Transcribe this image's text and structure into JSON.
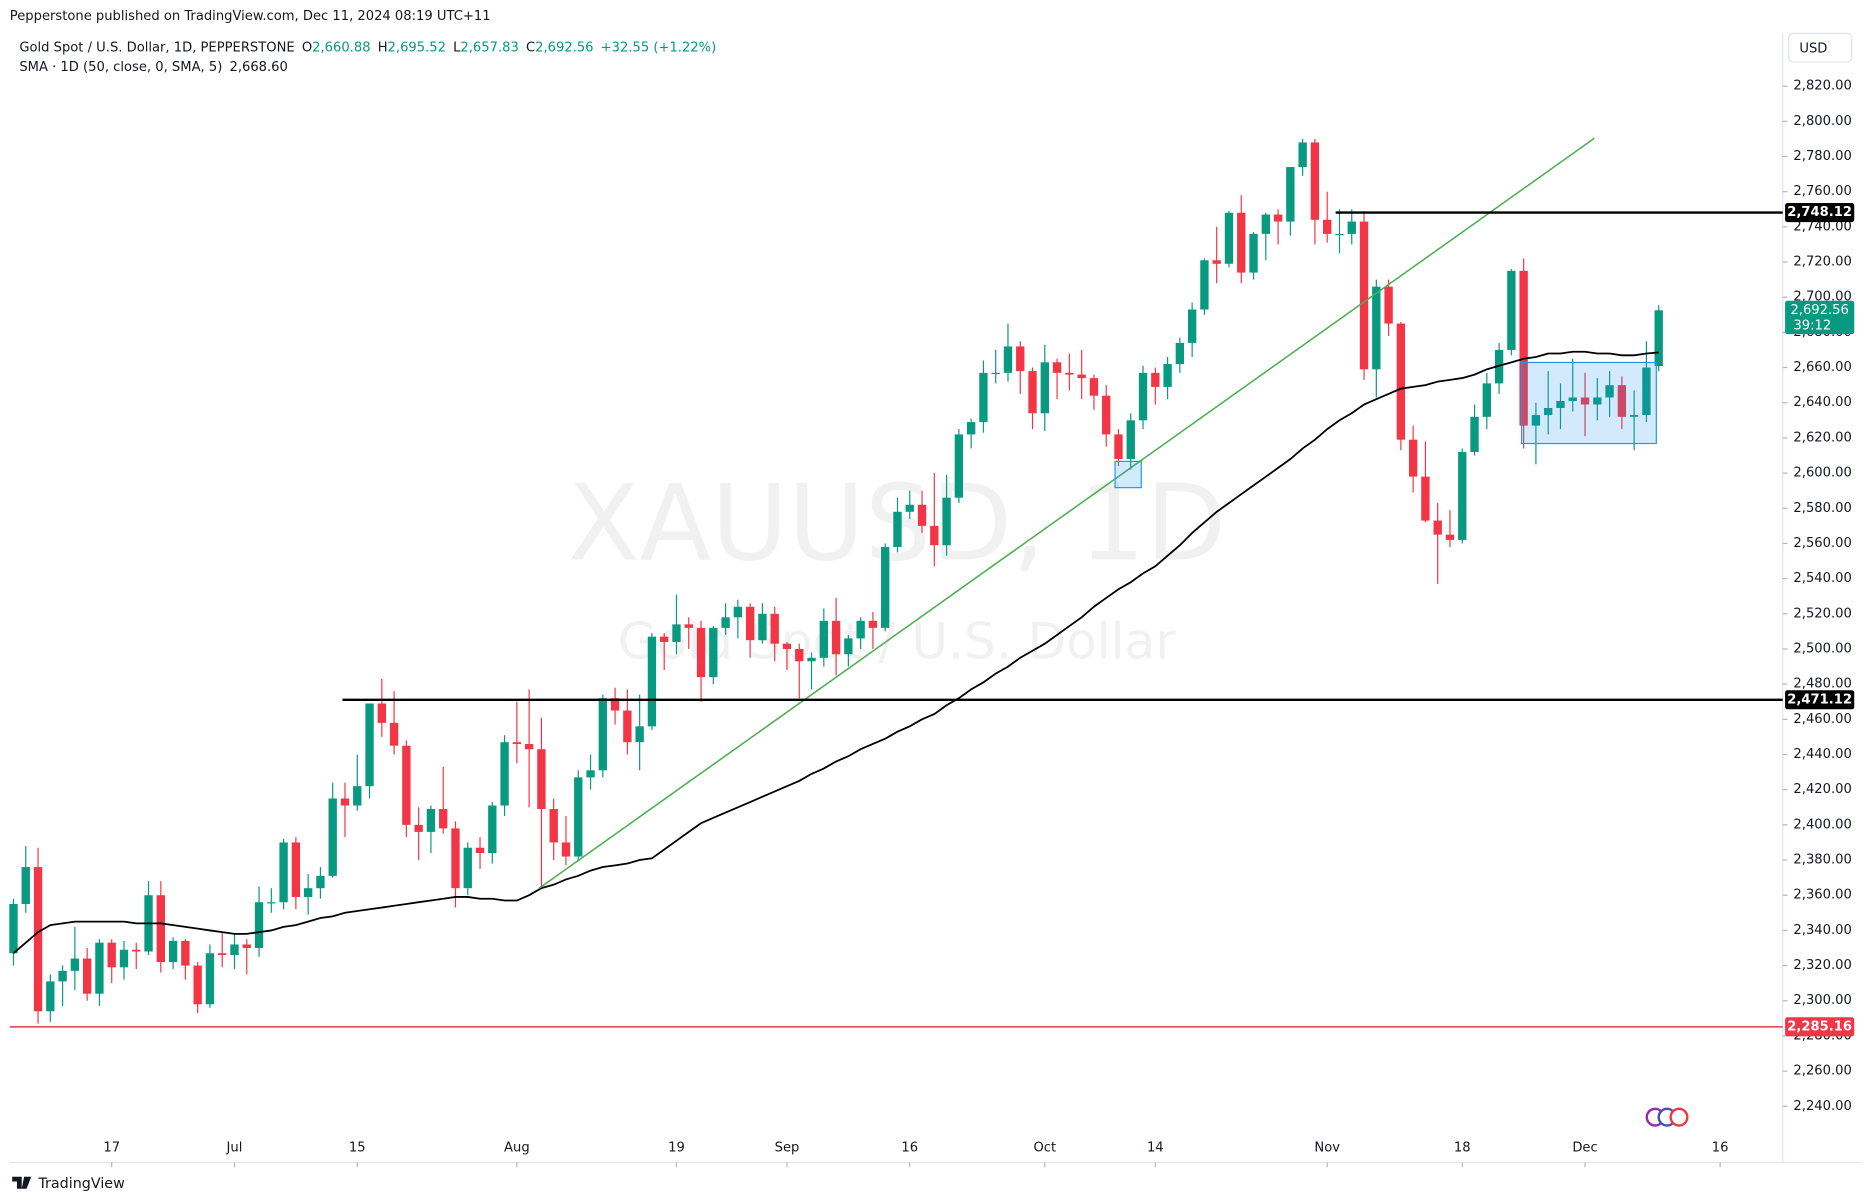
{
  "header": {
    "publisher": "Pepperstone published on TradingView.com, Dec 11, 2024 08:19 UTC+11",
    "currency": "USD",
    "logo": "TradingView"
  },
  "legend": {
    "symbol": "Gold Spot / U.S. Dollar, 1D, PEPPERSTONE",
    "o_label": "O",
    "open": "2,660.88",
    "h_label": "H",
    "high": "2,695.52",
    "l_label": "L",
    "low": "2,657.83",
    "c_label": "C",
    "close": "2,692.56",
    "change": "+32.55 (+1.22%)",
    "sma_name": "SMA · 1D (50, close, 0, SMA, 5)",
    "sma_value": "2,668.60"
  },
  "chart_data": {
    "type": "candlestick",
    "watermark": "XAUUSD, 1D",
    "watermark_subtitle": "Gold Spot / U.S. Dollar",
    "up_color": "#089981",
    "down_color": "#f23645",
    "sma_color": "#000000",
    "xlim": [
      -0.3,
      144.1
    ],
    "xticks": [
      {
        "value": 8,
        "label": "17"
      },
      {
        "value": 18,
        "label": "Jul"
      },
      {
        "value": 28,
        "label": "15"
      },
      {
        "value": 41,
        "label": "Aug"
      },
      {
        "value": 54,
        "label": "19"
      },
      {
        "value": 63,
        "label": "Sep"
      },
      {
        "value": 73,
        "label": "16"
      },
      {
        "value": 84,
        "label": "Oct"
      },
      {
        "value": 93,
        "label": "14"
      },
      {
        "value": 107,
        "label": "Nov"
      },
      {
        "value": 118,
        "label": "18"
      },
      {
        "value": 128,
        "label": "Dec"
      },
      {
        "value": 139,
        "label": "16"
      }
    ],
    "ylim": [
      2225,
      2850
    ],
    "yticks": [
      {
        "value": 2240,
        "label": "2,240.00"
      },
      {
        "value": 2260,
        "label": "2,260.00"
      },
      {
        "value": 2280,
        "label": "2,280.00"
      },
      {
        "value": 2300,
        "label": "2,300.00"
      },
      {
        "value": 2320,
        "label": "2,320.00"
      },
      {
        "value": 2340,
        "label": "2,340.00"
      },
      {
        "value": 2360,
        "label": "2,360.00"
      },
      {
        "value": 2380,
        "label": "2,380.00"
      },
      {
        "value": 2400,
        "label": "2,400.00"
      },
      {
        "value": 2420,
        "label": "2,420.00"
      },
      {
        "value": 2440,
        "label": "2,440.00"
      },
      {
        "value": 2460,
        "label": "2,460.00"
      },
      {
        "value": 2480,
        "label": "2,480.00"
      },
      {
        "value": 2500,
        "label": "2,500.00"
      },
      {
        "value": 2520,
        "label": "2,520.00"
      },
      {
        "value": 2540,
        "label": "2,540.00"
      },
      {
        "value": 2560,
        "label": "2,560.00"
      },
      {
        "value": 2580,
        "label": "2,580.00"
      },
      {
        "value": 2600,
        "label": "2,600.00"
      },
      {
        "value": 2620,
        "label": "2,620.00"
      },
      {
        "value": 2640,
        "label": "2,640.00"
      },
      {
        "value": 2660,
        "label": "2,660.00"
      },
      {
        "value": 2680,
        "label": "2,680.00"
      },
      {
        "value": 2700,
        "label": "2,700.00"
      },
      {
        "value": 2720,
        "label": "2,720.00"
      },
      {
        "value": 2740,
        "label": "2,740.00"
      },
      {
        "value": 2760,
        "label": "2,760.00"
      },
      {
        "value": 2780,
        "label": "2,780.00"
      },
      {
        "value": 2800,
        "label": "2,800.00"
      },
      {
        "value": 2820,
        "label": "2,820.00"
      }
    ],
    "ohlc": [
      [
        2327,
        2358,
        2320,
        2355
      ],
      [
        2355,
        2388,
        2350,
        2376
      ],
      [
        2376,
        2387,
        2287,
        2294
      ],
      [
        2294,
        2315,
        2288,
        2311
      ],
      [
        2311,
        2320,
        2297,
        2317
      ],
      [
        2317,
        2342,
        2306,
        2324
      ],
      [
        2324,
        2330,
        2300,
        2304
      ],
      [
        2304,
        2335,
        2297,
        2333
      ],
      [
        2333,
        2335,
        2310,
        2319
      ],
      [
        2319,
        2334,
        2312,
        2329
      ],
      [
        2329,
        2333,
        2318,
        2328
      ],
      [
        2328,
        2368,
        2326,
        2360
      ],
      [
        2360,
        2368,
        2316,
        2322
      ],
      [
        2322,
        2336,
        2318,
        2334
      ],
      [
        2334,
        2335,
        2312,
        2320
      ],
      [
        2320,
        2322,
        2293,
        2298
      ],
      [
        2298,
        2332,
        2296,
        2327
      ],
      [
        2327,
        2339,
        2319,
        2326
      ],
      [
        2326,
        2338,
        2318,
        2332
      ],
      [
        2332,
        2335,
        2315,
        2330
      ],
      [
        2330,
        2365,
        2325,
        2356
      ],
      [
        2356,
        2364,
        2350,
        2356
      ],
      [
        2356,
        2392,
        2352,
        2390
      ],
      [
        2390,
        2393,
        2352,
        2359
      ],
      [
        2359,
        2372,
        2349,
        2364
      ],
      [
        2364,
        2376,
        2358,
        2371
      ],
      [
        2371,
        2424,
        2370,
        2415
      ],
      [
        2415,
        2424,
        2393,
        2411
      ],
      [
        2411,
        2440,
        2408,
        2422
      ],
      [
        2422,
        2469,
        2415,
        2469
      ],
      [
        2469,
        2483,
        2450,
        2458
      ],
      [
        2458,
        2476,
        2440,
        2445
      ],
      [
        2445,
        2448,
        2393,
        2400
      ],
      [
        2400,
        2410,
        2380,
        2396
      ],
      [
        2396,
        2411,
        2384,
        2409
      ],
      [
        2409,
        2433,
        2395,
        2398
      ],
      [
        2398,
        2402,
        2353,
        2364
      ],
      [
        2364,
        2390,
        2360,
        2387
      ],
      [
        2387,
        2393,
        2375,
        2384
      ],
      [
        2384,
        2413,
        2378,
        2411
      ],
      [
        2411,
        2451,
        2405,
        2447
      ],
      [
        2447,
        2470,
        2435,
        2446
      ],
      [
        2446,
        2477,
        2410,
        2443
      ],
      [
        2443,
        2461,
        2364,
        2409
      ],
      [
        2409,
        2415,
        2380,
        2390
      ],
      [
        2390,
        2405,
        2377,
        2382
      ],
      [
        2382,
        2431,
        2380,
        2427
      ],
      [
        2427,
        2440,
        2420,
        2431
      ],
      [
        2431,
        2474,
        2427,
        2472
      ],
      [
        2472,
        2478,
        2457,
        2465
      ],
      [
        2465,
        2477,
        2440,
        2447
      ],
      [
        2447,
        2474,
        2431,
        2456
      ],
      [
        2456,
        2509,
        2454,
        2507
      ],
      [
        2507,
        2509,
        2488,
        2504
      ],
      [
        2504,
        2531,
        2497,
        2514
      ],
      [
        2514,
        2518,
        2500,
        2512
      ],
      [
        2512,
        2516,
        2470,
        2484
      ],
      [
        2484,
        2513,
        2480,
        2512
      ],
      [
        2512,
        2526,
        2508,
        2518
      ],
      [
        2518,
        2528,
        2506,
        2524
      ],
      [
        2524,
        2526,
        2495,
        2505
      ],
      [
        2505,
        2526,
        2503,
        2520
      ],
      [
        2520,
        2524,
        2493,
        2503
      ],
      [
        2503,
        2504,
        2488,
        2500
      ],
      [
        2500,
        2503,
        2472,
        2493
      ],
      [
        2493,
        2498,
        2477,
        2495
      ],
      [
        2495,
        2523,
        2490,
        2516
      ],
      [
        2516,
        2529,
        2485,
        2497
      ],
      [
        2497,
        2508,
        2490,
        2506
      ],
      [
        2506,
        2518,
        2500,
        2516
      ],
      [
        2516,
        2521,
        2500,
        2512
      ],
      [
        2512,
        2560,
        2510,
        2558
      ],
      [
        2558,
        2586,
        2555,
        2578
      ],
      [
        2578,
        2590,
        2574,
        2582
      ],
      [
        2582,
        2590,
        2566,
        2570
      ],
      [
        2570,
        2600,
        2547,
        2559
      ],
      [
        2559,
        2599,
        2553,
        2586
      ],
      [
        2586,
        2625,
        2583,
        2622
      ],
      [
        2622,
        2631,
        2614,
        2629
      ],
      [
        2629,
        2664,
        2623,
        2657
      ],
      [
        2657,
        2670,
        2651,
        2657
      ],
      [
        2657,
        2685,
        2652,
        2672
      ],
      [
        2672,
        2675,
        2645,
        2658
      ],
      [
        2658,
        2660,
        2625,
        2634
      ],
      [
        2634,
        2673,
        2624,
        2663
      ],
      [
        2663,
        2665,
        2642,
        2657
      ],
      [
        2657,
        2668,
        2647,
        2656
      ],
      [
        2656,
        2670,
        2642,
        2654
      ],
      [
        2654,
        2656,
        2636,
        2644
      ],
      [
        2644,
        2650,
        2615,
        2622
      ],
      [
        2622,
        2625,
        2604,
        2608
      ],
      [
        2608,
        2634,
        2602,
        2630
      ],
      [
        2630,
        2661,
        2625,
        2657
      ],
      [
        2657,
        2660,
        2639,
        2649
      ],
      [
        2649,
        2666,
        2642,
        2662
      ],
      [
        2662,
        2677,
        2657,
        2674
      ],
      [
        2674,
        2697,
        2666,
        2693
      ],
      [
        2693,
        2722,
        2690,
        2721
      ],
      [
        2721,
        2740,
        2708,
        2719
      ],
      [
        2719,
        2749,
        2717,
        2748
      ],
      [
        2748,
        2758,
        2708,
        2714
      ],
      [
        2714,
        2737,
        2710,
        2736
      ],
      [
        2736,
        2748,
        2721,
        2747
      ],
      [
        2747,
        2750,
        2730,
        2743
      ],
      [
        2743,
        2774,
        2735,
        2774
      ],
      [
        2774,
        2790,
        2769,
        2788
      ],
      [
        2788,
        2790,
        2730,
        2744
      ],
      [
        2744,
        2760,
        2731,
        2736
      ],
      [
        2736,
        2750,
        2725,
        2736
      ],
      [
        2736,
        2750,
        2730,
        2743
      ],
      [
        2743,
        2749,
        2653,
        2659
      ],
      [
        2659,
        2710,
        2643,
        2706
      ],
      [
        2706,
        2710,
        2678,
        2685
      ],
      [
        2685,
        2686,
        2613,
        2619
      ],
      [
        2619,
        2627,
        2589,
        2598
      ],
      [
        2598,
        2618,
        2572,
        2573
      ],
      [
        2573,
        2583,
        2537,
        2565
      ],
      [
        2565,
        2579,
        2558,
        2562
      ],
      [
        2562,
        2614,
        2560,
        2612
      ],
      [
        2612,
        2639,
        2610,
        2632
      ],
      [
        2632,
        2657,
        2625,
        2651
      ],
      [
        2651,
        2674,
        2645,
        2670
      ],
      [
        2670,
        2716,
        2667,
        2715
      ],
      [
        2715,
        2722,
        2614,
        2627
      ],
      [
        2627,
        2640,
        2605,
        2633
      ],
      [
        2633,
        2658,
        2622,
        2637
      ],
      [
        2637,
        2651,
        2625,
        2641
      ],
      [
        2641,
        2665,
        2635,
        2643
      ],
      [
        2643,
        2657,
        2621,
        2639
      ],
      [
        2639,
        2654,
        2630,
        2643
      ],
      [
        2643,
        2658,
        2632,
        2650
      ],
      [
        2650,
        2655,
        2625,
        2632
      ],
      [
        2632,
        2647,
        2613,
        2633
      ],
      [
        2633,
        2675,
        2629,
        2660
      ],
      [
        2660.88,
        2695.52,
        2657.83,
        2692.56
      ]
    ],
    "sma": [
      2327,
      2333,
      2339,
      2343,
      2344,
      2345,
      2345,
      2345,
      2345,
      2345,
      2344,
      2344,
      2344,
      2343,
      2342,
      2341,
      2340,
      2339,
      2338,
      2338,
      2339,
      2340,
      2342,
      2343,
      2345,
      2347,
      2348,
      2350,
      2351,
      2352,
      2353,
      2354,
      2355,
      2356,
      2357,
      2358,
      2359,
      2359,
      2358,
      2358,
      2357,
      2357,
      2360,
      2364,
      2366,
      2369,
      2371,
      2374,
      2376,
      2377,
      2378,
      2380,
      2381,
      2386,
      2391,
      2396,
      2401,
      2404,
      2407,
      2410,
      2413,
      2416,
      2419,
      2422,
      2425,
      2429,
      2432,
      2436,
      2439,
      2443,
      2446,
      2449,
      2453,
      2456,
      2460,
      2463,
      2468,
      2472,
      2477,
      2481,
      2486,
      2490,
      2495,
      2499,
      2503,
      2508,
      2513,
      2518,
      2524,
      2529,
      2534,
      2538,
      2543,
      2547,
      2553,
      2559,
      2566,
      2572,
      2578,
      2583,
      2588,
      2593,
      2598,
      2603,
      2608,
      2614,
      2619,
      2625,
      2630,
      2634,
      2639,
      2642,
      2645,
      2648,
      2649,
      2650,
      2652,
      2653,
      2654,
      2656,
      2659,
      2661,
      2663,
      2665,
      2666,
      2668,
      2668,
      2669,
      2669,
      2668,
      2668,
      2667,
      2667,
      2668,
      2668.6
    ],
    "levels": [
      {
        "value": 2748.12,
        "label": "2,748.12",
        "color": "#000000"
      },
      {
        "value": 2471.12,
        "label": "2,471.12",
        "color": "#000000"
      },
      {
        "value": 2285.16,
        "label": "2,285.16",
        "color": "#f23645"
      }
    ],
    "last_price": {
      "value": 2692.56,
      "label": "2,692.56",
      "countdown": "39:12",
      "color": "#089981"
    }
  }
}
